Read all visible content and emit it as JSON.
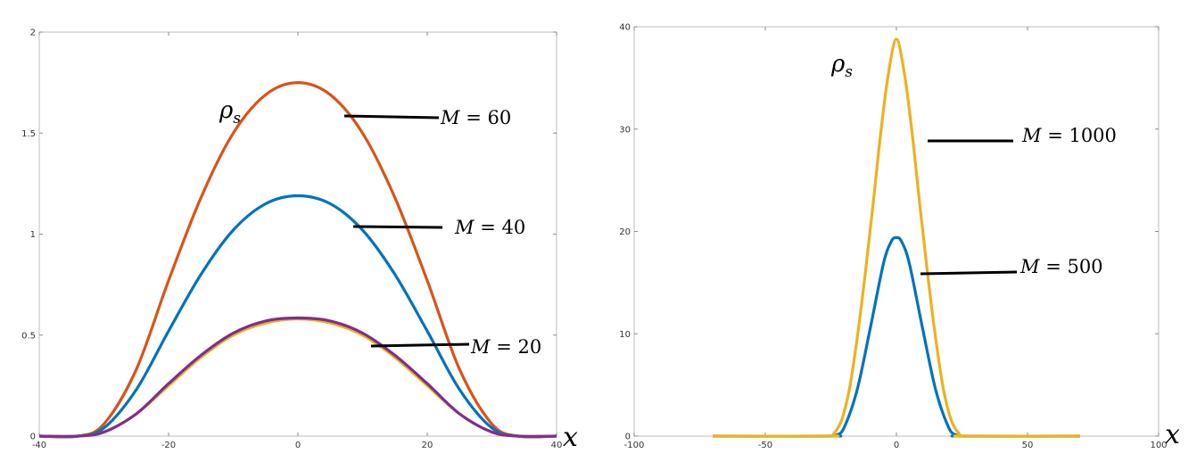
{
  "chart_data": [
    {
      "type": "line",
      "title": "",
      "xlabel": "x",
      "ylabel": "",
      "xlim": [
        -40,
        40
      ],
      "ylim": [
        0,
        2
      ],
      "grid": false,
      "xticks": [
        "-40",
        "-20",
        "0",
        "20",
        "40"
      ],
      "yticks": [
        "0",
        "0.5",
        "1",
        "1.5",
        "2"
      ],
      "xtick_values": [
        -40,
        -20,
        0,
        20,
        40
      ],
      "ytick_values": [
        0,
        0.5,
        1,
        1.5,
        2
      ],
      "curve_label": "ρ_s",
      "series": [
        {
          "color": "#D95319",
          "label_var": "M",
          "label_eq": " = 60",
          "x": [
            -40,
            -34,
            -30,
            -25,
            -20,
            -15,
            -10,
            -5,
            0,
            5,
            10,
            15,
            20,
            25,
            30,
            34,
            40
          ],
          "y": [
            0,
            0,
            0.06,
            0.33,
            0.77,
            1.18,
            1.5,
            1.69,
            1.75,
            1.69,
            1.5,
            1.18,
            0.77,
            0.33,
            0.06,
            0,
            0
          ]
        },
        {
          "color": "#0072BD",
          "label_var": "M",
          "label_eq": " = 40",
          "x": [
            -40,
            -34,
            -30,
            -25,
            -20,
            -15,
            -10,
            -5,
            0,
            5,
            10,
            15,
            20,
            25,
            30,
            34,
            40
          ],
          "y": [
            0,
            0,
            0.04,
            0.23,
            0.52,
            0.8,
            1.02,
            1.15,
            1.19,
            1.15,
            1.02,
            0.8,
            0.52,
            0.23,
            0.04,
            0,
            0
          ]
        },
        {
          "color": "#EDB120",
          "label_var": "",
          "label_eq": "",
          "x": [
            -40,
            -34,
            -30,
            -25,
            -20,
            -15,
            -10,
            -5,
            0,
            5,
            10,
            15,
            20,
            25,
            30,
            34,
            40
          ],
          "y": [
            0,
            0,
            0.02,
            0.11,
            0.25,
            0.39,
            0.5,
            0.56,
            0.58,
            0.56,
            0.5,
            0.39,
            0.25,
            0.11,
            0.02,
            0,
            0
          ]
        },
        {
          "color": "#7E2F8E",
          "label_var": "M",
          "label_eq": " = 20",
          "x": [
            -40,
            -34,
            -30,
            -25,
            -20,
            -15,
            -10,
            -5,
            0,
            5,
            10,
            15,
            20,
            25,
            30,
            34,
            40
          ],
          "y": [
            0,
            0,
            0.02,
            0.11,
            0.26,
            0.4,
            0.51,
            0.57,
            0.585,
            0.57,
            0.51,
            0.4,
            0.26,
            0.11,
            0.02,
            0,
            0
          ]
        }
      ]
    },
    {
      "type": "line",
      "title": "",
      "xlabel": "x",
      "ylabel": "",
      "xlim": [
        -100,
        100
      ],
      "ylim": [
        0,
        40
      ],
      "grid": false,
      "xticks": [
        "-100",
        "-50",
        "0",
        "50",
        "100"
      ],
      "yticks": [
        "0",
        "10",
        "20",
        "30",
        "40"
      ],
      "xtick_values": [
        -100,
        -50,
        0,
        50,
        100
      ],
      "ytick_values": [
        0,
        10,
        20,
        30,
        40
      ],
      "curve_label": "ρ_s",
      "series": [
        {
          "color": "#0072BD",
          "label_var": "M",
          "label_eq": " = 500",
          "x": [
            -70,
            -25,
            -23,
            -20,
            -15,
            -10,
            -5,
            -2,
            0,
            2,
            5,
            10,
            15,
            20,
            23,
            25,
            70
          ],
          "y": [
            0,
            0,
            0.1,
            0.8,
            4.5,
            10.5,
            16.8,
            19.0,
            19.4,
            19.0,
            16.8,
            10.5,
            4.5,
            0.8,
            0.1,
            0,
            0
          ]
        },
        {
          "color": "#EDB120",
          "label_var": "M",
          "label_eq": " = 1000",
          "x": [
            -70,
            -26,
            -24,
            -21,
            -18,
            -15,
            -12,
            -9,
            -6,
            -3,
            0,
            3,
            6,
            9,
            12,
            15,
            18,
            21,
            24,
            26,
            70
          ],
          "y": [
            0,
            0,
            0.2,
            1.5,
            4.5,
            9.5,
            15.6,
            22.4,
            29.6,
            35.5,
            38.8,
            35.5,
            29.6,
            22.4,
            15.6,
            9.5,
            4.5,
            1.5,
            0.2,
            0,
            0
          ]
        }
      ]
    }
  ]
}
